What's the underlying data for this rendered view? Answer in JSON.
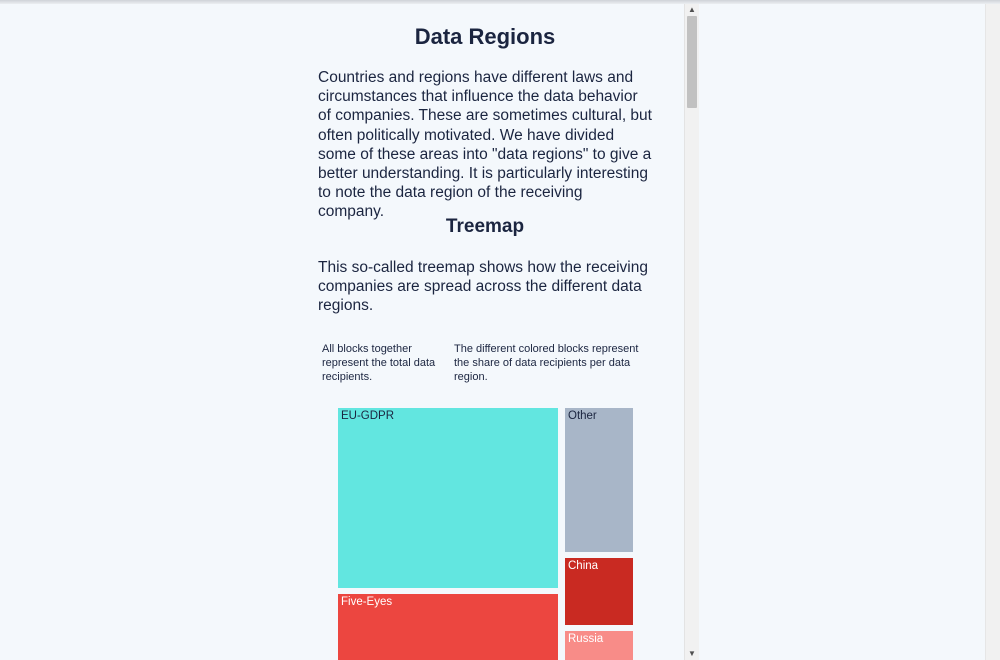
{
  "page": {
    "title": "Data Regions",
    "intro": "Countries and regions have different laws and circumstances that influence the data behavior of companies. These are sometimes cultural, but often politically motivated. We have divided some of these areas into \"data regions\" to give a better understanding. It is particularly interesting to note the data region of the receiving company.",
    "treemap_heading": "Treemap",
    "treemap_text": "This so-called treemap shows how the receiving companies are spread across the different data regions.",
    "note_left": "All blocks together represent the total data recipients.",
    "note_right": "The different colored blocks represent the share of data recipients per data region."
  },
  "chart_data": {
    "type": "treemap",
    "blocks": [
      {
        "name": "EU-GDPR",
        "color": "#62e6e0",
        "text_color": "#1b2540"
      },
      {
        "name": "Other",
        "color": "#a8b6c8",
        "text_color": "#1b2540"
      },
      {
        "name": "China",
        "color": "#c92a22",
        "text_color": "#ffffff"
      },
      {
        "name": "Five-Eyes",
        "color": "#ec4640",
        "text_color": "#ffffff"
      },
      {
        "name": "Russia",
        "color": "#f88c88",
        "text_color": "#ffffff"
      }
    ]
  }
}
